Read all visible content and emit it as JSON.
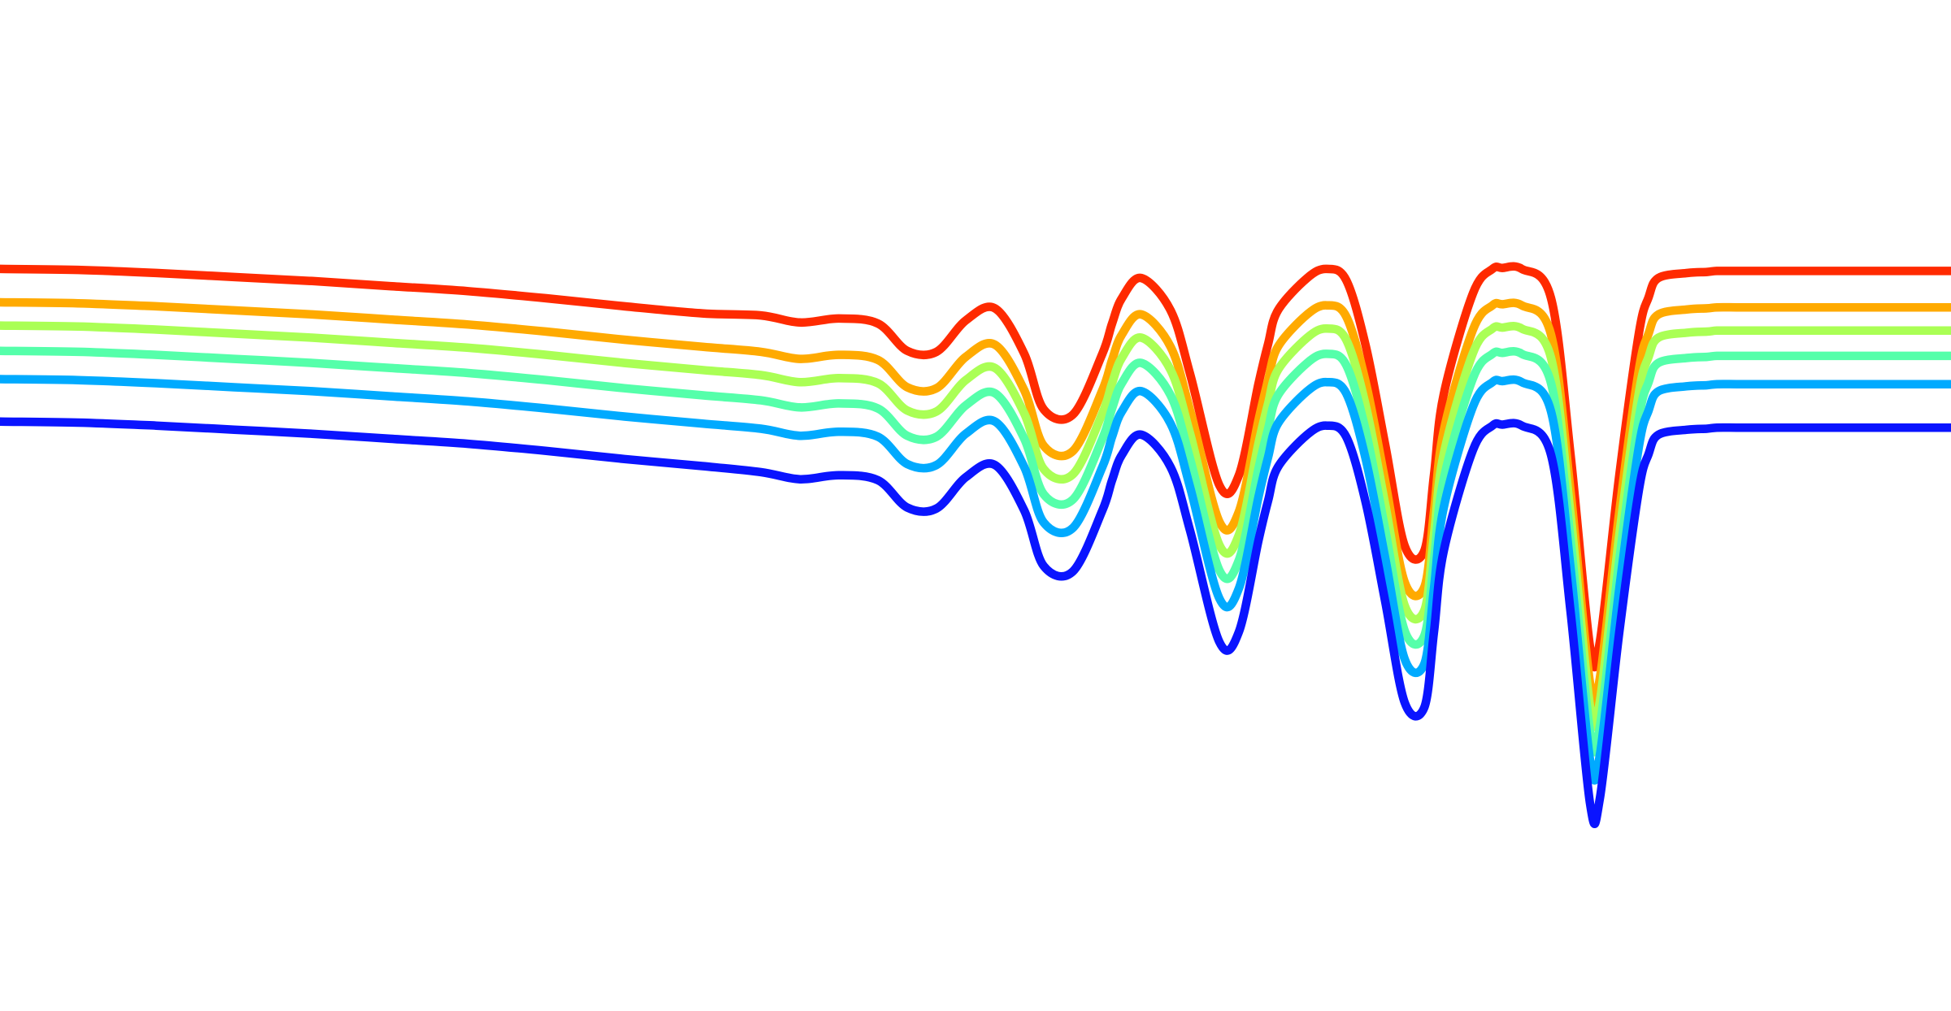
{
  "chart_data": {
    "type": "line",
    "title": "",
    "xlabel": "",
    "ylabel": "",
    "grid": false,
    "legend": "none",
    "axes_visible": false,
    "x_range": [
      0,
      100
    ],
    "y_range": [
      0,
      100
    ],
    "series": [
      {
        "color": "#ff2a00",
        "x": [
          0,
          4,
          8,
          12,
          16,
          20,
          24,
          28,
          32,
          36,
          39,
          41,
          43,
          45,
          46.5,
          48,
          49.5,
          51,
          52.5,
          53.5,
          55,
          56.5,
          57,
          57.5,
          58.5,
          60,
          61,
          62.5,
          63.5,
          64.5,
          65,
          65.5,
          67,
          68,
          69,
          70,
          71,
          72,
          73,
          73.5,
          74,
          75.5,
          76.5,
          77,
          78,
          79.5,
          80.5,
          81.5,
          82,
          83,
          84,
          84.5,
          85,
          86.5,
          87.5,
          88,
          89,
          90,
          92,
          95,
          100
        ],
        "y": [
          73.4,
          73.3,
          73.0,
          72.6,
          72.2,
          71.7,
          71.2,
          70.5,
          69.7,
          69.0,
          68.8,
          68.1,
          68.5,
          68.0,
          65.3,
          65.2,
          68.3,
          69.5,
          65.0,
          59.5,
          59.0,
          65.0,
          68.0,
          70.5,
          72.5,
          69.3,
          63.0,
          52.0,
          53.0,
          62.0,
          66.0,
          69.3,
          72.5,
          73.4,
          72.3,
          65.8,
          56.0,
          46.0,
          45.5,
          53.0,
          61.0,
          71.0,
          73.4,
          73.5,
          73.4,
          70.5,
          55.0,
          36.0,
          36.5,
          53.0,
          67.0,
          70.6,
          72.5,
          73.0,
          73.1,
          73.2,
          73.2,
          73.2,
          73.2,
          73.2,
          73.2
        ]
      },
      {
        "color": "#ffaa00",
        "x": [
          0,
          4,
          8,
          12,
          16,
          20,
          24,
          28,
          32,
          36,
          39,
          41,
          43,
          45,
          46.5,
          48,
          49.5,
          51,
          52.5,
          53.5,
          55,
          56.5,
          57,
          57.5,
          58.5,
          60,
          61,
          62.5,
          63.5,
          64.5,
          65,
          65.5,
          67,
          68,
          69,
          70,
          71,
          72,
          73,
          73.5,
          74,
          75.5,
          76.5,
          77,
          78,
          79.5,
          80.5,
          81.5,
          82,
          83,
          84,
          84.5,
          85,
          86.5,
          87.5,
          88,
          89,
          90,
          92,
          95,
          100
        ],
        "y": [
          70.1,
          70.0,
          69.7,
          69.3,
          68.9,
          68.4,
          67.9,
          67.2,
          66.4,
          65.7,
          65.2,
          64.5,
          64.9,
          64.4,
          61.7,
          61.6,
          64.7,
          65.9,
          61.4,
          55.9,
          55.4,
          61.4,
          64.4,
          66.9,
          68.9,
          65.7,
          59.4,
          48.4,
          49.4,
          58.4,
          62.4,
          65.7,
          68.9,
          69.8,
          68.7,
          62.2,
          52.4,
          42.4,
          41.9,
          49.4,
          57.4,
          67.4,
          69.8,
          69.9,
          69.8,
          66.9,
          51.4,
          32.4,
          32.9,
          49.4,
          63.4,
          67.0,
          68.9,
          69.4,
          69.5,
          69.6,
          69.6,
          69.6,
          69.6,
          69.6,
          69.6
        ]
      },
      {
        "color": "#aaff55",
        "x": [
          0,
          4,
          8,
          12,
          16,
          20,
          24,
          28,
          32,
          36,
          39,
          41,
          43,
          45,
          46.5,
          48,
          49.5,
          51,
          52.5,
          53.5,
          55,
          56.5,
          57,
          57.5,
          58.5,
          60,
          61,
          62.5,
          63.5,
          64.5,
          65,
          65.5,
          67,
          68,
          69,
          70,
          71,
          72,
          73,
          73.5,
          74,
          75.5,
          76.5,
          77,
          78,
          79.5,
          80.5,
          81.5,
          82,
          83,
          84,
          84.5,
          85,
          86.5,
          87.5,
          88,
          89,
          90,
          92,
          95,
          100
        ],
        "y": [
          67.8,
          67.7,
          67.4,
          67.0,
          66.6,
          66.1,
          65.6,
          64.9,
          64.1,
          63.4,
          62.9,
          62.2,
          62.6,
          62.1,
          59.4,
          59.3,
          62.4,
          63.6,
          59.1,
          53.6,
          53.1,
          59.1,
          62.1,
          64.6,
          66.6,
          63.4,
          57.1,
          46.1,
          47.1,
          56.1,
          60.1,
          63.4,
          66.6,
          67.5,
          66.4,
          59.9,
          50.1,
          40.1,
          39.6,
          47.1,
          55.1,
          65.1,
          67.5,
          67.6,
          67.5,
          64.6,
          49.1,
          30.1,
          30.6,
          47.1,
          61.1,
          64.7,
          66.6,
          67.1,
          67.2,
          67.3,
          67.3,
          67.3,
          67.3,
          67.3,
          67.3
        ]
      },
      {
        "color": "#55ffaa",
        "x": [
          0,
          4,
          8,
          12,
          16,
          20,
          24,
          28,
          32,
          36,
          39,
          41,
          43,
          45,
          46.5,
          48,
          49.5,
          51,
          52.5,
          53.5,
          55,
          56.5,
          57,
          57.5,
          58.5,
          60,
          61,
          62.5,
          63.5,
          64.5,
          65,
          65.5,
          67,
          68,
          69,
          70,
          71,
          72,
          73,
          73.5,
          74,
          75.5,
          76.5,
          77,
          78,
          79.5,
          80.5,
          81.5,
          82,
          83,
          84,
          84.5,
          85,
          86.5,
          87.5,
          88,
          89,
          90,
          92,
          95,
          100
        ],
        "y": [
          65.3,
          65.2,
          64.9,
          64.5,
          64.1,
          63.6,
          63.1,
          62.4,
          61.6,
          60.9,
          60.4,
          59.7,
          60.1,
          59.6,
          56.9,
          56.8,
          59.9,
          61.1,
          56.6,
          51.1,
          50.6,
          56.6,
          59.6,
          62.1,
          64.1,
          60.9,
          54.6,
          43.6,
          44.6,
          53.6,
          57.6,
          60.9,
          64.1,
          65.0,
          63.9,
          57.4,
          47.6,
          37.6,
          37.1,
          44.6,
          52.6,
          62.6,
          65.0,
          65.1,
          65.0,
          62.1,
          46.6,
          27.6,
          28.1,
          44.6,
          58.6,
          62.2,
          64.1,
          64.6,
          64.7,
          64.8,
          64.8,
          64.8,
          64.8,
          64.8,
          64.8
        ]
      },
      {
        "color": "#00aaff",
        "x": [
          0,
          4,
          8,
          12,
          16,
          20,
          24,
          28,
          32,
          36,
          39,
          41,
          43,
          45,
          46.5,
          48,
          49.5,
          51,
          52.5,
          53.5,
          55,
          56.5,
          57,
          57.5,
          58.5,
          60,
          61,
          62.5,
          63.5,
          64.5,
          65,
          65.5,
          67,
          68,
          69,
          70,
          71,
          72,
          73,
          73.5,
          74,
          75.5,
          76.5,
          77,
          78,
          79.5,
          80.5,
          81.5,
          82,
          83,
          84,
          84.5,
          85,
          86.5,
          87.5,
          88,
          89,
          90,
          92,
          95,
          100
        ],
        "y": [
          62.5,
          62.4,
          62.1,
          61.7,
          61.3,
          60.8,
          60.3,
          59.6,
          58.8,
          58.1,
          57.6,
          56.9,
          57.3,
          56.8,
          54.1,
          54.0,
          57.1,
          58.3,
          53.8,
          48.3,
          47.8,
          53.8,
          56.8,
          59.3,
          61.3,
          58.1,
          51.8,
          40.8,
          41.8,
          50.8,
          54.8,
          58.1,
          61.3,
          62.2,
          61.1,
          54.6,
          44.8,
          34.8,
          34.3,
          41.8,
          49.8,
          59.8,
          62.2,
          62.3,
          62.2,
          59.3,
          43.8,
          24.8,
          25.3,
          41.8,
          55.8,
          59.4,
          61.3,
          61.8,
          61.9,
          62.0,
          62.0,
          62.0,
          62.0,
          62.0,
          62.0
        ]
      },
      {
        "color": "#0a14ff",
        "x": [
          0,
          4,
          8,
          12,
          16,
          20,
          24,
          28,
          32,
          36,
          39,
          41,
          43,
          45,
          46.5,
          48,
          49.5,
          51,
          52.5,
          53.5,
          55,
          56.5,
          57,
          57.5,
          58.5,
          60,
          61,
          62.5,
          63.5,
          64.5,
          65,
          65.5,
          67,
          68,
          69,
          70,
          71,
          72,
          73,
          73.5,
          74,
          75.5,
          76.5,
          77,
          78,
          79.5,
          80.5,
          81.5,
          82,
          83,
          84,
          84.5,
          85,
          86.5,
          87.5,
          88,
          89,
          90,
          92,
          95,
          100
        ],
        "y": [
          58.3,
          58.2,
          57.9,
          57.5,
          57.1,
          56.6,
          56.1,
          55.4,
          54.6,
          53.9,
          53.3,
          52.6,
          53.0,
          52.5,
          49.8,
          49.7,
          52.8,
          54.0,
          49.5,
          44.0,
          43.5,
          49.5,
          52.5,
          55.0,
          57.0,
          53.8,
          47.5,
          36.5,
          37.5,
          46.5,
          50.5,
          53.8,
          57.0,
          57.9,
          56.8,
          50.3,
          40.5,
          30.5,
          30.0,
          37.5,
          45.5,
          55.5,
          57.9,
          58.0,
          57.9,
          55.0,
          39.5,
          20.5,
          21.0,
          37.5,
          51.5,
          55.1,
          57.0,
          57.5,
          57.6,
          57.7,
          57.7,
          57.7,
          57.7,
          57.7,
          57.7
        ]
      }
    ]
  }
}
